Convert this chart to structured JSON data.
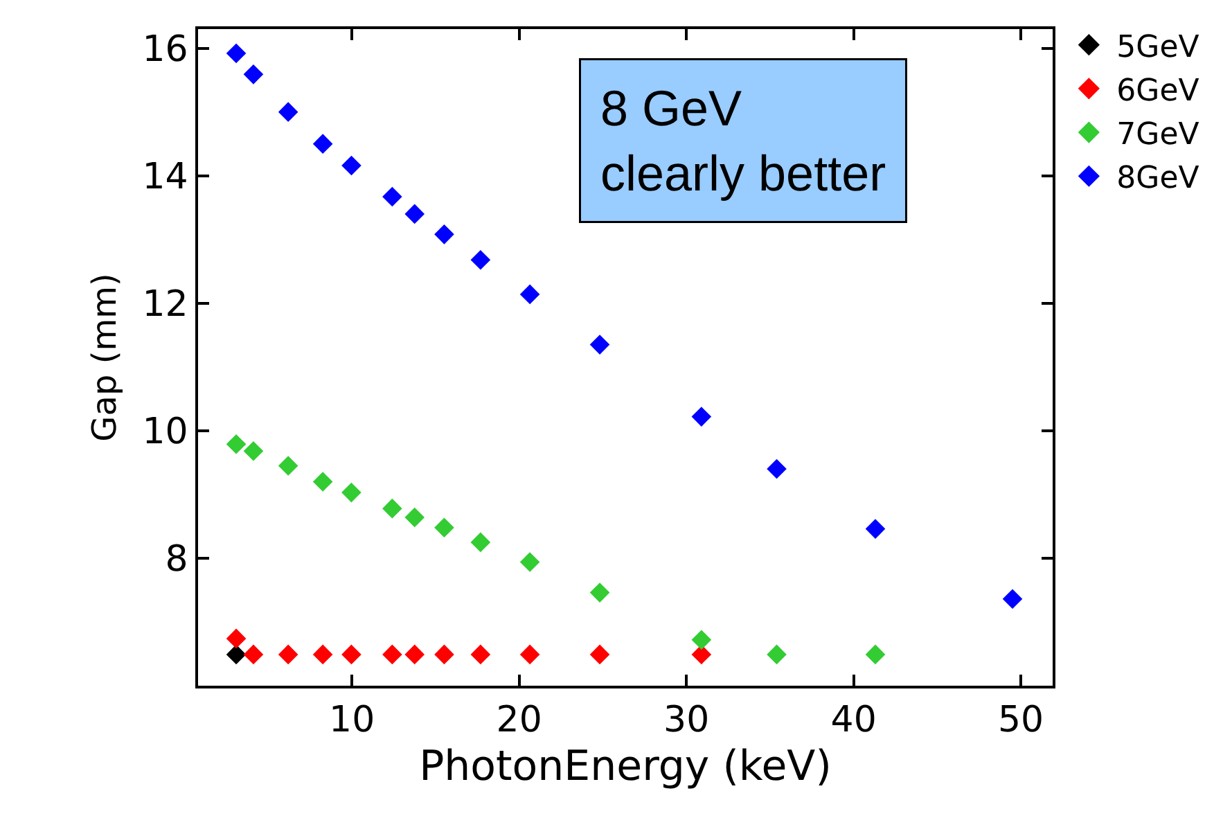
{
  "chart_data": {
    "type": "scatter",
    "xlabel": "PhotonEnergy (keV)",
    "ylabel": "Gap (mm)",
    "xlim": [
      0.8,
      51.9
    ],
    "xticks": [
      10,
      20,
      30,
      40,
      50
    ],
    "ylim": [
      6.0,
      16.3
    ],
    "yticks": [
      8,
      10,
      12,
      14,
      16
    ],
    "marker": "diamond",
    "legend": "right",
    "annotations": [
      "8 GeV\nclearly better"
    ],
    "series": [
      {
        "name": "5GeV",
        "color": "#000000",
        "x": [
          3.08
        ],
        "values": [
          6.49
        ]
      },
      {
        "name": "6GeV",
        "color": "#ff0000",
        "x": [
          3.08,
          4.11,
          6.19,
          8.26,
          9.97,
          12.41,
          13.75,
          15.52,
          17.69,
          20.64,
          24.82,
          30.9
        ],
        "values": [
          6.74,
          6.49,
          6.49,
          6.49,
          6.49,
          6.49,
          6.49,
          6.49,
          6.49,
          6.49,
          6.49,
          6.49
        ]
      },
      {
        "name": "7GeV",
        "color": "#33cc33",
        "x": [
          3.08,
          4.11,
          6.19,
          8.26,
          9.97,
          12.41,
          13.75,
          15.52,
          17.69,
          20.64,
          24.82,
          30.9,
          35.4,
          41.3
        ],
        "values": [
          9.79,
          9.68,
          9.45,
          9.2,
          9.03,
          8.78,
          8.64,
          8.48,
          8.25,
          7.94,
          7.46,
          6.72,
          6.49,
          6.49
        ]
      },
      {
        "name": "8GeV",
        "color": "#0000ff",
        "x": [
          3.08,
          4.11,
          6.19,
          8.26,
          9.97,
          12.41,
          13.75,
          15.52,
          17.69,
          20.64,
          24.82,
          30.9,
          35.4,
          41.3,
          49.5
        ],
        "values": [
          15.92,
          15.59,
          15.0,
          14.5,
          14.16,
          13.67,
          13.4,
          13.08,
          12.68,
          12.14,
          11.35,
          10.22,
          9.4,
          8.46,
          7.36
        ]
      }
    ]
  }
}
